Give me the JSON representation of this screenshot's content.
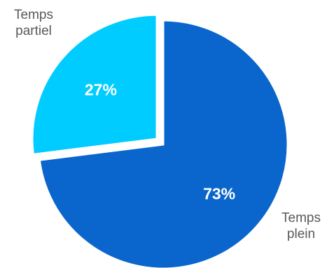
{
  "chart_data": {
    "type": "pie",
    "title": "",
    "slices": [
      {
        "category_lines": [
          "Temps",
          "plein"
        ],
        "value": 73,
        "label": "73%",
        "color": "#0A66CC"
      },
      {
        "category_lines": [
          "Temps",
          "partiel"
        ],
        "value": 27,
        "label": "27%",
        "color": "#00CCFF"
      }
    ],
    "start_angle": "12 o'clock",
    "direction": "clockwise",
    "exploded_slice": "Temps partiel",
    "legend": "none"
  }
}
